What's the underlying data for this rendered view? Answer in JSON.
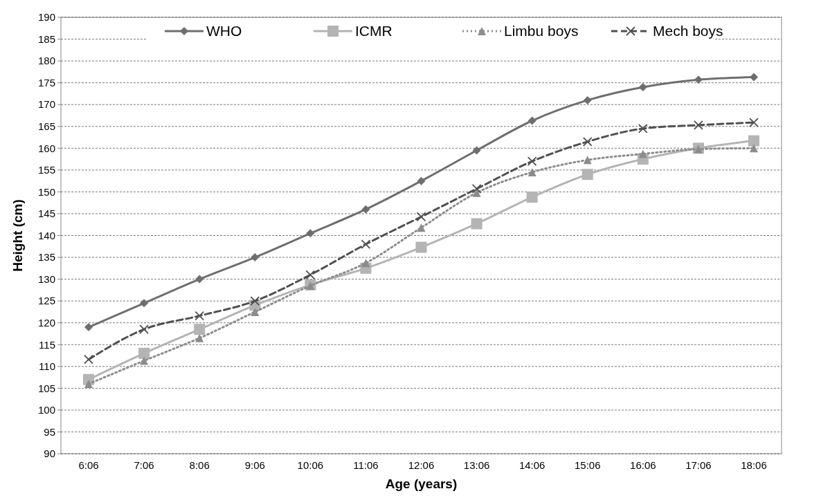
{
  "chart_data": {
    "type": "line",
    "xlabel": "Age (years)",
    "ylabel": "Height (cm)",
    "categories": [
      "6:06",
      "7:06",
      "8:06",
      "9:06",
      "10:06",
      "11:06",
      "12:06",
      "13:06",
      "14:06",
      "15:06",
      "16:06",
      "17:06",
      "18:06"
    ],
    "series": [
      {
        "name": "WHO",
        "color": "#6e6e6e",
        "marker": "diamond",
        "line_style": "solid",
        "values": [
          119,
          124.5,
          130,
          135,
          140.5,
          146,
          152.5,
          159.5,
          166.3,
          171,
          174,
          175.7,
          176.3
        ]
      },
      {
        "name": "ICMR",
        "color": "#b4b4b4",
        "marker": "square",
        "line_style": "solid",
        "values": [
          107,
          113,
          118.5,
          124,
          128.7,
          132.5,
          137.3,
          142.7,
          148.8,
          154,
          157.5,
          160,
          161.7
        ]
      },
      {
        "name": "Limbu boys",
        "color": "#8c8c8c",
        "marker": "triangle",
        "line_style": "dotted",
        "values": [
          106,
          111.3,
          116.5,
          122.5,
          128.5,
          133.7,
          141.8,
          149.8,
          154.5,
          157.3,
          158.7,
          159.8,
          160
        ]
      },
      {
        "name": "Mech boys",
        "color": "#505050",
        "marker": "cross",
        "line_style": "dashed",
        "values": [
          111.6,
          118.5,
          121.6,
          125,
          131,
          138,
          144.3,
          150.7,
          157,
          161.5,
          164.5,
          165.3,
          165.9
        ]
      }
    ],
    "ylim": [
      90,
      190
    ],
    "yticks": [
      90,
      95,
      100,
      105,
      110,
      115,
      120,
      125,
      130,
      135,
      140,
      145,
      150,
      155,
      160,
      165,
      170,
      175,
      180,
      185,
      190
    ],
    "grid": "y",
    "legend": "top"
  }
}
